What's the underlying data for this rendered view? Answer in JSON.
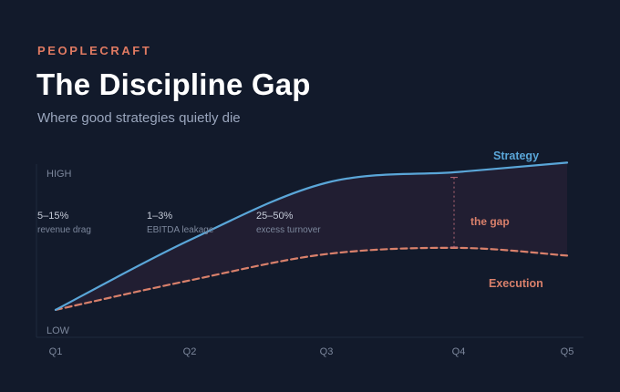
{
  "header": {
    "brand": "PEOPLECRAFT",
    "title": "The Discipline Gap",
    "subtitle": "Where good strategies quietly die"
  },
  "colors": {
    "background": "#121a2b",
    "strategy": "#5aa6d8",
    "execution": "#d9806b",
    "gap_fill": "#241f33",
    "axis_text": "#7c879c",
    "annotation_value": "#c5cbd8",
    "annotation_sub": "#7c879c"
  },
  "chart_data": {
    "type": "line",
    "title": "The Discipline Gap",
    "x": [
      "Q1",
      "Q2",
      "Q3",
      "Q4",
      "Q5"
    ],
    "ylim": [
      0,
      10
    ],
    "y_tick_labels": {
      "high": "HIGH",
      "low": "LOW"
    },
    "series": [
      {
        "name": "Strategy",
        "style": "solid",
        "values": [
          0.3,
          4.8,
          8.5,
          9.2,
          9.8
        ]
      },
      {
        "name": "Execution",
        "style": "dashed",
        "values": [
          0.3,
          2.2,
          3.9,
          4.3,
          3.8
        ]
      }
    ],
    "gap_label": "the gap",
    "gap_at": "Q4",
    "annotations": [
      {
        "value": "5–15%",
        "label": "revenue drag"
      },
      {
        "value": "1–3%",
        "label": "EBITDA leakage"
      },
      {
        "value": "25–50%",
        "label": "excess turnover"
      }
    ]
  }
}
